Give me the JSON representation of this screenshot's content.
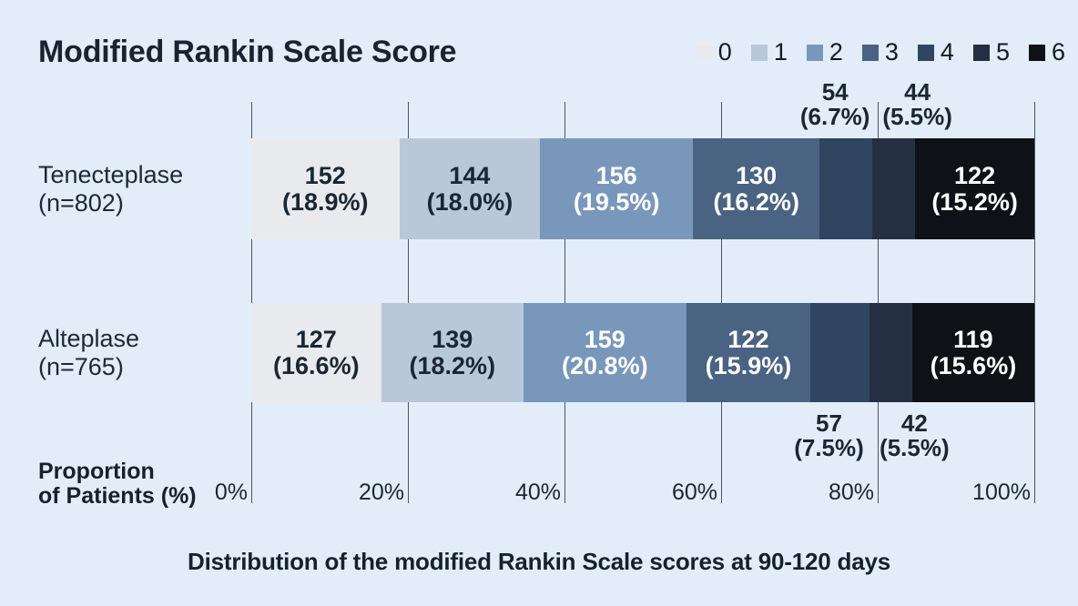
{
  "page": {
    "background": "#e3edfa",
    "text_color": "#1b2633"
  },
  "chart_data": {
    "type": "stacked-bar-horizontal",
    "title": "Modified Rankin Scale Score",
    "caption": "Distribution of the modified Rankin Scale scores at 90-120 days",
    "xlabel": "Proportion of Patients (%)",
    "xlabel_lines": [
      "Proportion",
      "of Patients (%)"
    ],
    "xlim": [
      0,
      100
    ],
    "grid": true,
    "x_ticks": [
      {
        "value": 0,
        "label": "0%"
      },
      {
        "value": 20,
        "label": "20%"
      },
      {
        "value": 40,
        "label": "40%"
      },
      {
        "value": 60,
        "label": "60%"
      },
      {
        "value": 80,
        "label": "80%"
      },
      {
        "value": 100,
        "label": "100%"
      }
    ],
    "legend": {
      "position": "top-right",
      "labels": [
        "0",
        "1",
        "2",
        "3",
        "4",
        "5",
        "6"
      ],
      "colors": [
        "#e8eaed",
        "#b9c8d8",
        "#7897bb",
        "#4a6382",
        "#30455f",
        "#242f42",
        "#0e1116"
      ]
    },
    "categories": [
      "0",
      "1",
      "2",
      "3",
      "4",
      "5",
      "6"
    ],
    "label_placement": [
      "inside",
      "inside",
      "inside",
      "inside",
      "outside",
      "outside",
      "inside"
    ],
    "inside_text_colors": [
      "dark",
      "dark",
      "light",
      "light",
      null,
      null,
      "light"
    ],
    "series": [
      {
        "name": "Tenecteplase",
        "label_lines": [
          "Tenecteplase",
          "(n=802)"
        ],
        "n": 802,
        "counts": [
          152,
          144,
          156,
          130,
          54,
          44,
          122
        ],
        "pcts": [
          18.9,
          18.0,
          19.5,
          16.2,
          6.7,
          5.5,
          15.2
        ],
        "pct_labels": [
          "(18.9%)",
          "(18.0%)",
          "(19.5%)",
          "(16.2%)",
          "(6.7%)",
          "(5.5%)",
          "(15.2%)"
        ],
        "outside_label_side": "above"
      },
      {
        "name": "Alteplase",
        "label_lines": [
          "Alteplase",
          "(n=765)"
        ],
        "n": 765,
        "counts": [
          127,
          139,
          159,
          122,
          57,
          42,
          119
        ],
        "pcts": [
          16.6,
          18.2,
          20.8,
          15.9,
          7.5,
          5.5,
          15.6
        ],
        "pct_labels": [
          "(16.6%)",
          "(18.2%)",
          "(20.8%)",
          "(15.9%)",
          "(7.5%)",
          "(5.5%)",
          "(15.6%)"
        ],
        "outside_label_side": "below"
      }
    ]
  }
}
